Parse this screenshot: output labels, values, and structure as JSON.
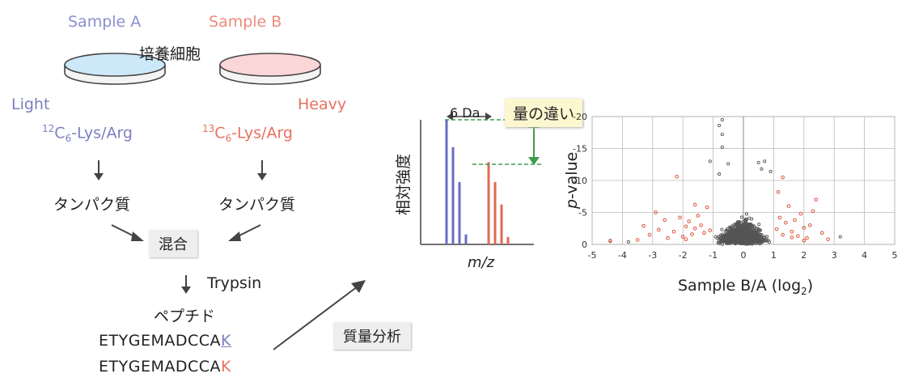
{
  "left": {
    "sample_a": "Sample A",
    "sample_b": "Sample B",
    "cell_label": "培養細胞",
    "light": "Light",
    "heavy": "Heavy",
    "light_iso_mass": "12",
    "light_iso_c": "C",
    "light_iso_sub": "6",
    "light_iso_rest": "-Lys/Arg",
    "heavy_iso_mass": "13",
    "heavy_iso_c": "C",
    "heavy_iso_sub": "6",
    "heavy_iso_rest": "-Lys/Arg",
    "protein_left": "タンパク質",
    "protein_right": "タンパク質",
    "mix": "混合",
    "trypsin": "Trypsin",
    "peptide": "ペプチド",
    "seq1_main": "ETYGEMADCCA",
    "seq1_k": "K",
    "seq2_main": "ETYGEMADCCA",
    "seq2_k": "K",
    "ms_label": "質量分析",
    "colors": {
      "light": "#7b7fc0",
      "heavy": "#e8705f",
      "dish_light": "#cde8f8",
      "dish_heavy": "#fbd6d8"
    }
  },
  "spectrum": {
    "da_label": "6 Da",
    "diff_label": "量の違い",
    "ylabel": "相対強度",
    "xlabel": "m/z",
    "light_peaks": [
      1.0,
      0.78,
      0.5,
      0.08
    ],
    "heavy_peaks": [
      0.66,
      0.5,
      0.32,
      0.06
    ],
    "colors": {
      "light": "#6a6cc0",
      "heavy": "#e06a50",
      "arrow": "#3f9b4f"
    }
  },
  "chart_data": {
    "type": "scatter",
    "xlabel_main": "Sample B/A (log",
    "xlabel_sub": "2",
    "xlabel_end": ")",
    "ylabel_italic": "p",
    "ylabel_rest": "-value",
    "xlim": [
      -5,
      5
    ],
    "ylim": [
      0,
      -20
    ],
    "x_ticks": [
      "-5",
      "-4",
      "-3",
      "-2",
      "-1",
      "0",
      "1",
      "2",
      "3",
      "4",
      "5"
    ],
    "y_ticks": [
      "-20",
      "-15",
      "-10",
      "-5",
      "0"
    ],
    "grid": true,
    "colors": {
      "insignificant": "#555555",
      "significant": "#e0604a"
    },
    "highlight_points": [
      [
        -4.4,
        -0.5
      ],
      [
        -3.5,
        -0.7
      ],
      [
        -3.1,
        -1.5
      ],
      [
        -2.8,
        -2.3
      ],
      [
        -2.6,
        -3.8
      ],
      [
        -2.9,
        -5.0
      ],
      [
        -2.3,
        -2.0
      ],
      [
        -2.1,
        -4.2
      ],
      [
        -2.0,
        -1.2
      ],
      [
        -1.9,
        -2.8
      ],
      [
        -1.8,
        -3.6
      ],
      [
        -1.7,
        -1.6
      ],
      [
        -1.6,
        -2.5
      ],
      [
        -1.5,
        -4.5
      ],
      [
        -1.4,
        -3.0
      ],
      [
        -1.3,
        -1.8
      ],
      [
        -1.2,
        -5.8
      ],
      [
        -1.1,
        -2.2
      ],
      [
        -2.2,
        -10.6
      ],
      [
        -1.6,
        -6.2
      ],
      [
        -2.5,
        -1.0
      ],
      [
        -3.3,
        -2.9
      ],
      [
        -1.9,
        -0.8
      ],
      [
        1.1,
        -2.4
      ],
      [
        1.2,
        -4.2
      ],
      [
        1.3,
        -1.5
      ],
      [
        1.4,
        -3.4
      ],
      [
        1.5,
        -6.0
      ],
      [
        1.6,
        -2.0
      ],
      [
        1.7,
        -3.8
      ],
      [
        1.8,
        -1.3
      ],
      [
        1.9,
        -4.8
      ],
      [
        2.0,
        -2.6
      ],
      [
        2.1,
        -1.0
      ],
      [
        2.2,
        -3.0
      ],
      [
        2.3,
        -5.2
      ],
      [
        2.4,
        -7.0
      ],
      [
        1.3,
        -10.5
      ],
      [
        1.15,
        -8.2
      ],
      [
        2.6,
        -1.8
      ],
      [
        2.8,
        -0.8
      ],
      [
        1.6,
        -1.1
      ],
      [
        2.0,
        -0.6
      ]
    ],
    "outlier_points": [
      [
        -0.7,
        -19.5
      ],
      [
        -0.8,
        -18.6
      ],
      [
        -0.7,
        -17.2
      ],
      [
        -0.7,
        -15.2
      ],
      [
        -1.1,
        -13.0
      ],
      [
        -0.5,
        -12.6
      ],
      [
        0.5,
        -12.8
      ],
      [
        0.7,
        -13.0
      ],
      [
        -0.8,
        -11.0
      ],
      [
        0.6,
        -11.8
      ],
      [
        0.9,
        -11.4
      ],
      [
        -4.4,
        -0.6
      ],
      [
        3.2,
        -1.2
      ],
      [
        -3.8,
        -0.4
      ]
    ]
  }
}
